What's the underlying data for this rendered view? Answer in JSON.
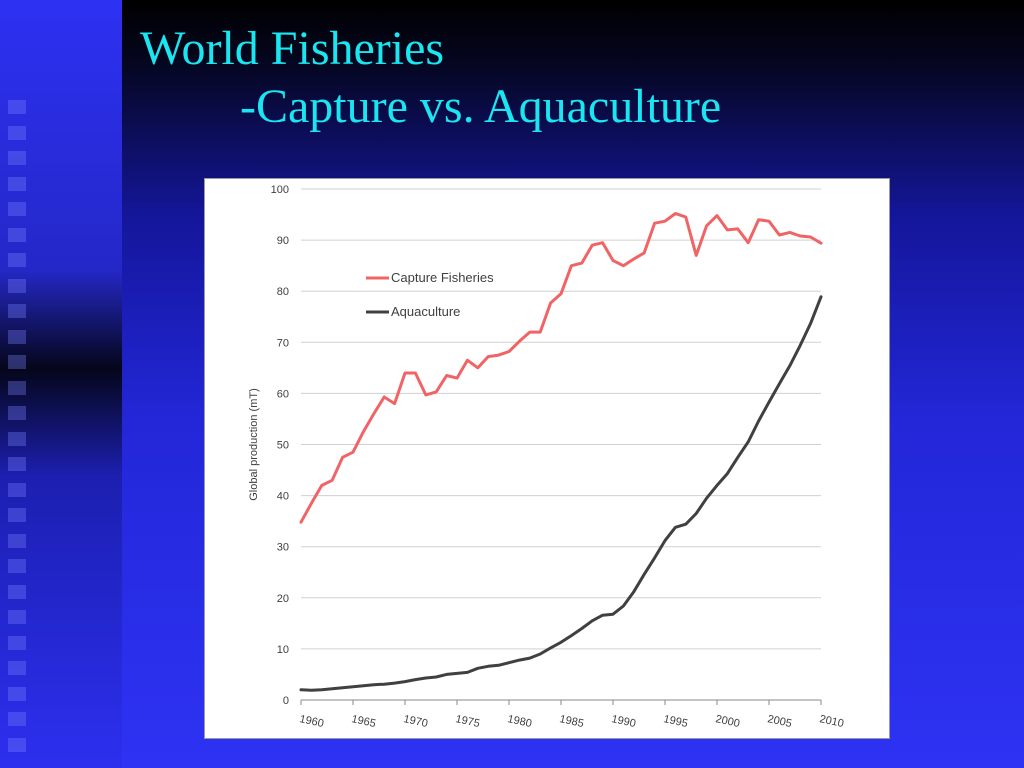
{
  "title": {
    "line1": "World Fisheries",
    "line2": "-Capture vs. Aquaculture"
  },
  "colors": {
    "title": "#19e6f0",
    "capture": "#f06466",
    "aquaculture": "#404040",
    "grid": "#d0d0d0"
  },
  "chart_data": {
    "type": "line",
    "title": "",
    "xlabel": "",
    "ylabel": "Global production (mT)",
    "xlim": [
      1960,
      2010
    ],
    "ylim": [
      0,
      100
    ],
    "yticks": [
      0,
      10,
      20,
      30,
      40,
      50,
      60,
      70,
      80,
      90,
      100
    ],
    "xticks": [
      "1960",
      "1965",
      "1970",
      "1975",
      "1980",
      "1985",
      "1990",
      "1995",
      "2000",
      "2005",
      "2010"
    ],
    "grid": "horizontal",
    "legend": "upper-left-inside",
    "series": [
      {
        "name": "Capture Fisheries",
        "color": "#f06466",
        "x": [
          1960,
          1961,
          1962,
          1963,
          1964,
          1965,
          1966,
          1967,
          1968,
          1969,
          1970,
          1971,
          1972,
          1973,
          1974,
          1975,
          1976,
          1977,
          1978,
          1979,
          1980,
          1981,
          1982,
          1983,
          1984,
          1985,
          1986,
          1987,
          1988,
          1989,
          1990,
          1991,
          1992,
          1993,
          1994,
          1995,
          1996,
          1997,
          1998,
          1999,
          2000,
          2001,
          2002,
          2003,
          2004,
          2005,
          2006,
          2007,
          2008,
          2009,
          2010
        ],
        "values": [
          34.8,
          38.5,
          42.0,
          43.0,
          47.5,
          48.5,
          52.5,
          56.0,
          59.3,
          58.0,
          64.0,
          64.0,
          59.7,
          60.3,
          63.5,
          63.0,
          66.5,
          65.0,
          67.2,
          67.5,
          68.2,
          70.2,
          72.0,
          72.0,
          77.7,
          79.5,
          85.0,
          85.5,
          89.0,
          89.5,
          86.0,
          85.0,
          86.3,
          87.5,
          93.3,
          93.7,
          95.2,
          94.5,
          87.0,
          92.8,
          94.8,
          92.0,
          92.2,
          89.5,
          94.0,
          93.7,
          91.0,
          91.5,
          90.8,
          90.6,
          89.4
        ]
      },
      {
        "name": "Aquaculture",
        "color": "#404040",
        "x": [
          1960,
          1961,
          1962,
          1963,
          1964,
          1965,
          1966,
          1967,
          1968,
          1969,
          1970,
          1971,
          1972,
          1973,
          1974,
          1975,
          1976,
          1977,
          1978,
          1979,
          1980,
          1981,
          1982,
          1983,
          1984,
          1985,
          1986,
          1987,
          1988,
          1989,
          1990,
          1991,
          1992,
          1993,
          1994,
          1995,
          1996,
          1997,
          1998,
          1999,
          2000,
          2001,
          2002,
          2003,
          2004,
          2005,
          2006,
          2007,
          2008,
          2009,
          2010
        ],
        "values": [
          2.0,
          1.9,
          2.0,
          2.2,
          2.4,
          2.6,
          2.8,
          3.0,
          3.1,
          3.3,
          3.6,
          4.0,
          4.3,
          4.5,
          5.0,
          5.2,
          5.4,
          6.2,
          6.6,
          6.8,
          7.3,
          7.8,
          8.2,
          9.0,
          10.2,
          11.3,
          12.6,
          14.0,
          15.5,
          16.6,
          16.8,
          18.4,
          21.2,
          24.6,
          27.8,
          31.2,
          33.8,
          34.4,
          36.5,
          39.5,
          42.0,
          44.3,
          47.5,
          50.5,
          54.6,
          58.3,
          61.9,
          65.4,
          69.4,
          73.7,
          78.9
        ]
      }
    ]
  }
}
